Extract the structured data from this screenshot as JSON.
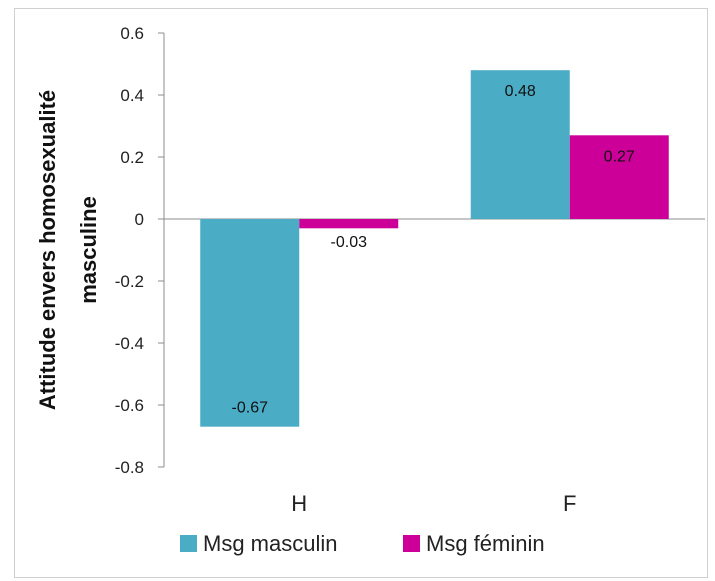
{
  "chart_data": {
    "type": "bar",
    "title": "",
    "xlabel": "",
    "ylabel_lines": [
      "Attitude envers homosexualité",
      "masculine"
    ],
    "categories": [
      "H",
      "F"
    ],
    "series": [
      {
        "name": "Msg masculin",
        "values": [
          -0.67,
          0.48
        ],
        "labels": [
          "-0.67",
          "0.48"
        ],
        "color": "#4bacc6"
      },
      {
        "name": "Msg féminin",
        "values": [
          -0.03,
          0.27
        ],
        "labels": [
          "-0.03",
          "0.27"
        ],
        "color": "#cc0099"
      }
    ],
    "ylim": [
      -0.8,
      0.6
    ],
    "yticks": [
      0.6,
      0.4,
      0.2,
      0,
      -0.2,
      -0.4,
      -0.6,
      -0.8
    ],
    "ytick_labels": [
      "0.6",
      "0.4",
      "0.2",
      "0",
      "-0.2",
      "-0.4",
      "-0.6",
      "-0.8"
    ],
    "grid": false,
    "legend_position": "bottom"
  }
}
